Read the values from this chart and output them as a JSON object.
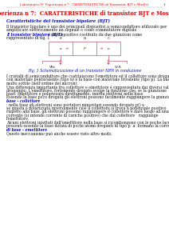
{
  "header_text": "Laboratorio IV  Esperienza n 7:  CARATTERISTICHE di Transistor BJT e MosFet",
  "page_number": "1",
  "title": "Esperienza n 7:  CARATTERISTICHE di transistor BJT e MosFet",
  "section_title": "Caratteristiche del transistor bipolare (BJT)",
  "para1_line1": "Il transistor bipolare è uno dei principali dispositivi a semiconduttore utilizzato per",
  "para1_line2": "amplificare elettricamente un segnale o come commutatore digitale.",
  "para2_bold": "Il transistor bipolare (BJT)",
  "para2_rest": " è un dispositivo costituito da due giunzioni come",
  "para2_line2": "rappresentato in fig. 1",
  "fig_caption": "Fig. 1 Schematizzazione di un transistor NPN in conduzione",
  "body_lines": [
    "I cristalli di semiconduttore che costituiscono l'emettitore ed il collettore sono drogati",
    "con materiale pentavalente (tipo n) e la base con materiale trivalente (tipo p). La base è",
    "molto sottile (nell'ordine del micron).",
    "Una differenza importante fra collettore e emettitore è rappresentata dai diversi valori di",
    "drogaggio. L'emettitore, fortemente drogato svolge la funzione che, se la giunzione",
    "base- emettitore è polarizzata direttamente, inietta elettroni nella base.",
    "Essendo la base poco drogata gli elettroni possono facilmente raggiungere la giunzione"
  ],
  "bold_inline1": "base - collettore",
  "body_lines2": [
    ": nella base gli elettroni sono portatori minoritari essendo drogato p() e",
    "se questa è polarizzata inversamente cioè il collettore si trova a potenziale positivo",
    "rispetto alla base, gli elettroni possono raggiungere il collettore e dare luogo ad una",
    "corrente (si intende corrente di cariche positive) che dal collettore   raggiunge",
    "l'emettitore.",
    "Alcuni elettroni iniettati dall'emettitore nella base si ricombongono con le poche lacune",
    "presenti essendo la base dotata di pochi atomi droganti di tipo p  a  formano la corrente"
  ],
  "bold_inline2": "di base - emettitore",
  "body_last": ".",
  "body_final": "Questo meccanismo può anche essere visto altro modo.",
  "header_color": "#dd0000",
  "title_color": "#dd0000",
  "section_color": "#0000cc",
  "caption_color": "#0000cc",
  "bold_color": "#0000cc",
  "normal_color": "#111111",
  "diagram_color": "#cc7788",
  "bg_color": "#ffffff"
}
